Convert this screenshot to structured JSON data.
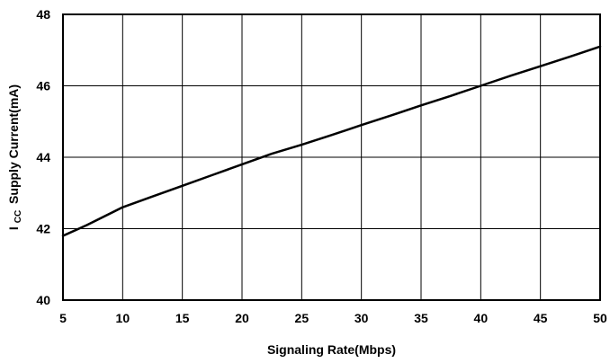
{
  "chart_data": {
    "type": "line",
    "title": "",
    "xlabel": "Signaling Rate(Mbps)",
    "ylabel": "Supply Current(mA)",
    "ylabel_prefix": "I",
    "ylabel_subscript": "CC",
    "xlim": [
      5,
      50
    ],
    "ylim": [
      40,
      48
    ],
    "xticks": [
      5,
      10,
      15,
      20,
      25,
      30,
      35,
      40,
      45,
      50
    ],
    "yticks": [
      40,
      42,
      44,
      46,
      48
    ],
    "grid": true,
    "legend": "none",
    "colors": {
      "line": "#000000",
      "grid": "#000000",
      "background": "#ffffff"
    },
    "series": [
      {
        "x": [
          5,
          7,
          10,
          12.5,
          15,
          17.5,
          20,
          22.5,
          25,
          27.5,
          30,
          32.5,
          35,
          37.5,
          40,
          42.5,
          45,
          47.5,
          50
        ],
        "values": [
          41.8,
          42.1,
          42.6,
          42.9,
          43.2,
          43.5,
          43.8,
          44.1,
          44.35,
          44.62,
          44.9,
          45.17,
          45.45,
          45.72,
          46.0,
          46.28,
          46.55,
          46.82,
          47.1
        ]
      }
    ]
  }
}
